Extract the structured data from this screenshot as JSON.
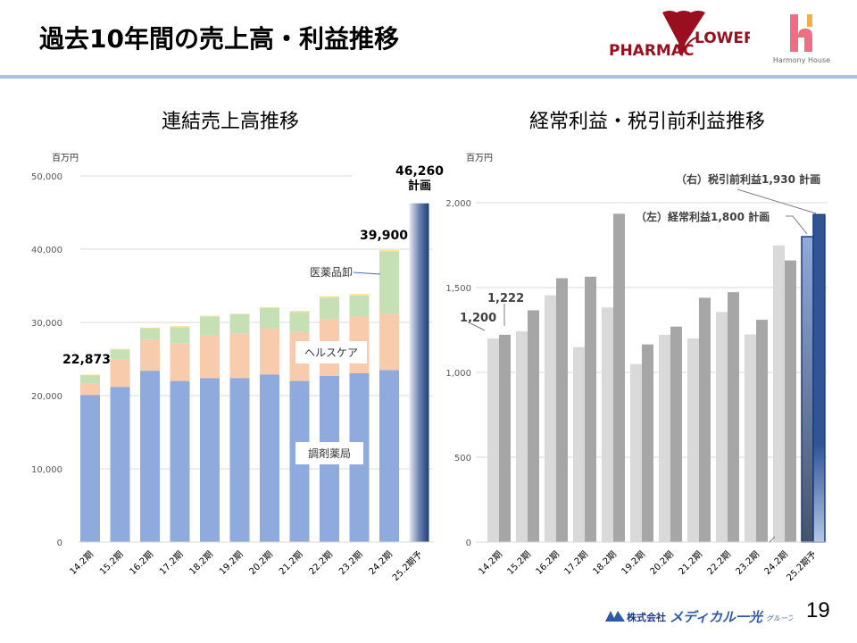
{
  "header": {
    "title": "過去10年間の売上高・利益推移",
    "logos": {
      "pharmacy_flower": {
        "left": "PHARMAC",
        "right": "LOWER",
        "color": "#9a0f1f"
      },
      "harmony_house": {
        "text": "Harmony House",
        "colors": [
          "#ee6e83",
          "#f5ad48"
        ]
      }
    },
    "rule_color": "#a9c1e8"
  },
  "footer": {
    "company_logo": "株式会社メディカル一光グループ",
    "page_number": "19"
  },
  "chart_data": [
    {
      "type": "bar",
      "stacked": true,
      "title": "連結売上高推移",
      "unit": "百万円",
      "categories": [
        "14.2期",
        "15.2期",
        "16.2期",
        "17.2期",
        "18.2期",
        "19.2期",
        "20.2期",
        "21.2期",
        "22.2期",
        "23.2期",
        "24.2期",
        "25.2期予"
      ],
      "ylim": [
        0,
        50000
      ],
      "yticks": [
        0,
        10000,
        20000,
        30000,
        40000,
        50000
      ],
      "ytick_labels": [
        "0",
        "10,000",
        "20,000",
        "30,000",
        "40,000",
        "50,000"
      ],
      "grid": true,
      "series": [
        {
          "name": "調剤薬局",
          "color": "#8faadc",
          "values": [
            20100,
            21200,
            23400,
            22000,
            22400,
            22400,
            22900,
            22000,
            22700,
            23050,
            23500,
            null
          ]
        },
        {
          "name": "ヘルスケア",
          "color": "#f8cbad",
          "values": [
            1600,
            3700,
            4300,
            5100,
            5900,
            6100,
            6300,
            6700,
            7800,
            7750,
            7700,
            null
          ]
        },
        {
          "name": "医薬品卸",
          "color": "#c5e0b4",
          "values": [
            1100,
            1400,
            1500,
            2250,
            2500,
            2600,
            2750,
            2700,
            2900,
            2900,
            8500,
            null
          ]
        },
        {
          "name": "",
          "color": "#ffe699",
          "values": [
            73,
            100,
            100,
            150,
            100,
            100,
            150,
            200,
            200,
            200,
            200,
            null
          ]
        },
        {
          "name": "計画",
          "color": "#1f3c7a",
          "values": [
            null,
            null,
            null,
            null,
            null,
            null,
            null,
            null,
            null,
            null,
            null,
            46260
          ]
        }
      ],
      "annotations": [
        {
          "text": "22,873",
          "category": "14.2期"
        },
        {
          "text": "39,900",
          "category": "24.2期"
        },
        {
          "text": "46,260",
          "sub": "計画",
          "category": "25.2期予"
        },
        {
          "text": "医薬品卸"
        },
        {
          "text": "ヘルスケア"
        },
        {
          "text": "調剤薬局"
        }
      ]
    },
    {
      "type": "bar",
      "title": "経常利益・税引前利益推移",
      "unit": "百万円",
      "categories": [
        "14.2期",
        "15.2期",
        "16.2期",
        "17.2期",
        "18.2期",
        "19.2期",
        "20.2期",
        "21.2期",
        "22.2期",
        "23.2期",
        "24.2期",
        "25.2期予"
      ],
      "ylim": [
        0,
        2000
      ],
      "yticks": [
        0,
        500,
        1000,
        1500,
        2000
      ],
      "ytick_labels": [
        "0",
        "500",
        "1,000",
        "1,500",
        "2,000"
      ],
      "grid": true,
      "series": [
        {
          "name": "経常利益",
          "color": "#d9d9d9",
          "plan_color": "#8faadc",
          "values": [
            1200,
            1242,
            1455,
            1149,
            1383,
            1049,
            1222,
            1200,
            1356,
            1224,
            1748,
            1800
          ]
        },
        {
          "name": "税引前利益",
          "color": "#a6a6a6",
          "plan_color": "#2f5597",
          "values": [
            1222,
            1366,
            1555,
            1564,
            1935,
            1165,
            1270,
            1440,
            1473,
            1310,
            1660,
            1930
          ]
        }
      ],
      "annotations": [
        {
          "text": "1,222"
        },
        {
          "text": "1,200"
        },
        {
          "text": "（左）経常利益1,800 計画"
        },
        {
          "text": "（右）税引前利益1,930 計画"
        }
      ]
    }
  ]
}
